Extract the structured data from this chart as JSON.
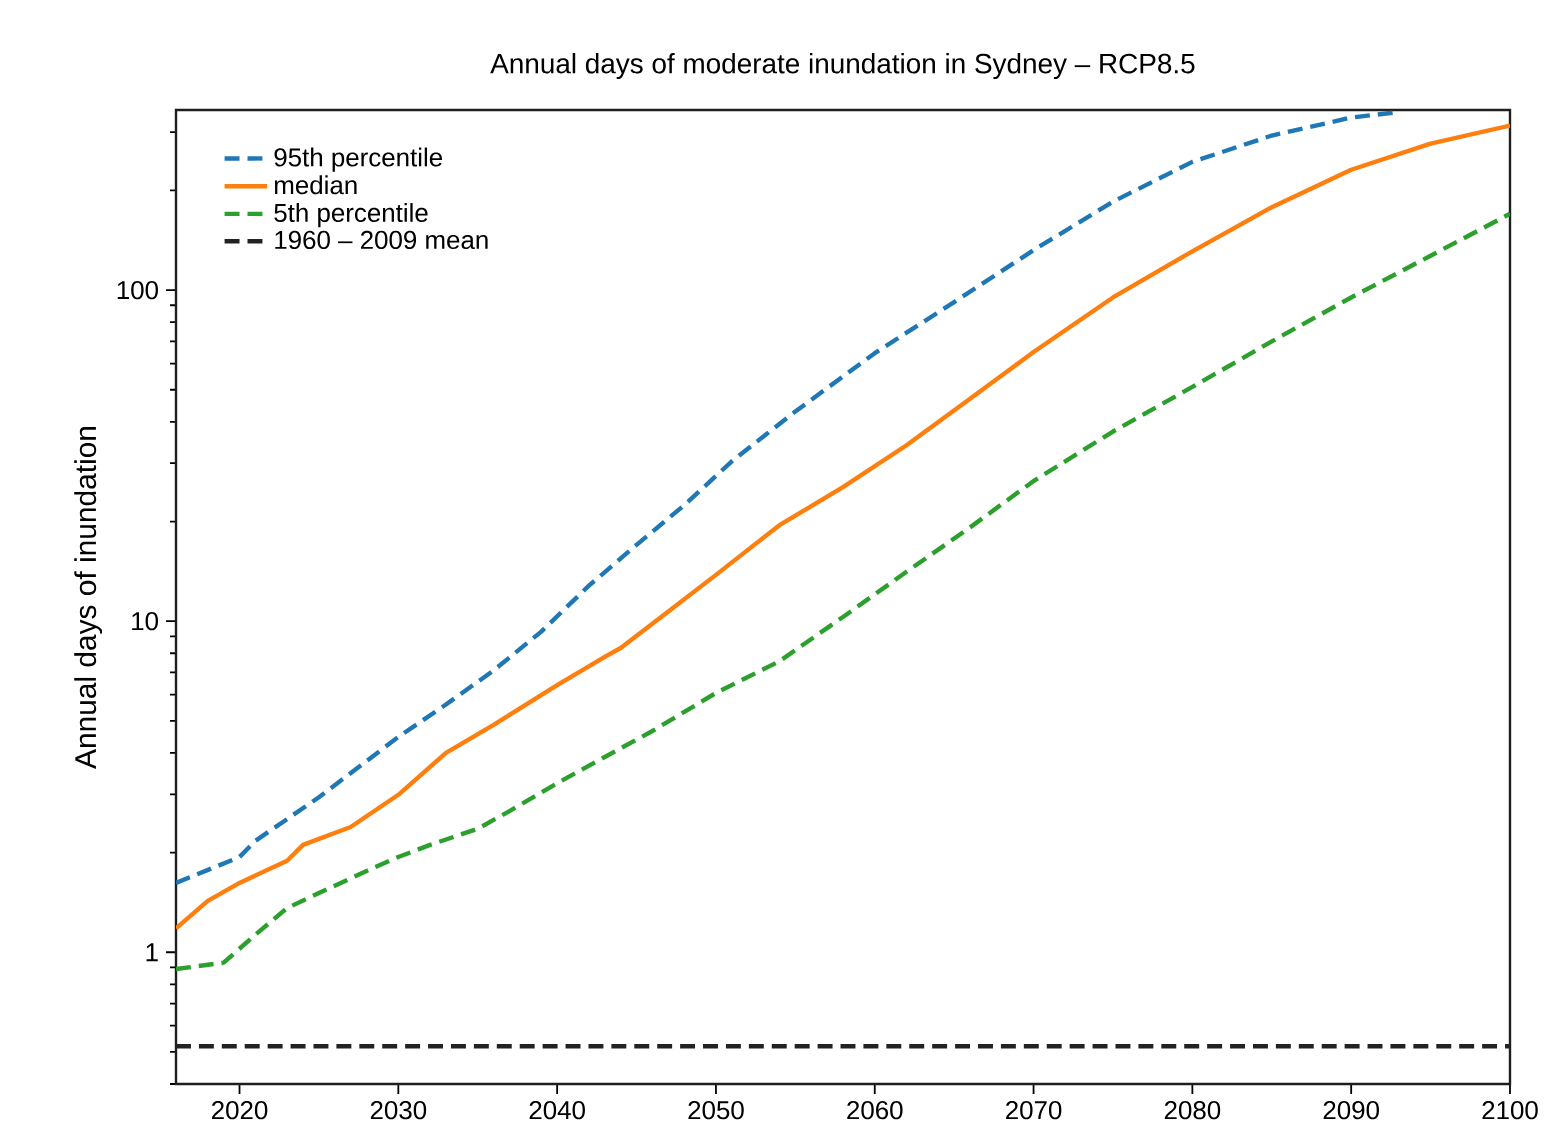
{
  "chart_data": {
    "type": "line",
    "title": "Annual days of moderate inundation in Sydney – RCP8.5",
    "ylabel": "Annual days of inundation",
    "log": "y",
    "legend": "top left",
    "xlim": [
      2016,
      2100
    ],
    "xticks": [
      2020,
      2030,
      2040,
      2050,
      2060,
      2070,
      2080,
      2090,
      2100
    ],
    "ylim": [
      0.4,
      350
    ],
    "yticks": [
      {
        "value": 0.4,
        "label": null
      },
      {
        "value": 0.5,
        "label": null
      },
      {
        "value": 0.6,
        "label": null
      },
      {
        "value": 0.7,
        "label": null
      },
      {
        "value": 0.8,
        "label": null
      },
      {
        "value": 0.9,
        "label": null
      },
      1,
      {
        "value": 2,
        "label": null
      },
      {
        "value": 3,
        "label": null
      },
      {
        "value": 4,
        "label": null
      },
      {
        "value": 5,
        "label": null
      },
      {
        "value": 6,
        "label": null
      },
      {
        "value": 7,
        "label": null
      },
      {
        "value": 8,
        "label": null
      },
      {
        "value": 9,
        "label": null
      },
      10,
      {
        "value": 20,
        "label": null
      },
      {
        "value": 30,
        "label": null
      },
      {
        "value": 40,
        "label": null
      },
      {
        "value": 50,
        "label": null
      },
      {
        "value": 60,
        "label": null
      },
      {
        "value": 70,
        "label": null
      },
      {
        "value": 80,
        "label": null
      },
      {
        "value": 90,
        "label": null
      },
      100,
      {
        "value": 200,
        "label": null
      },
      {
        "value": 300,
        "label": null
      }
    ],
    "series": [
      {
        "name": "95th percentile",
        "color": "#1f77b4",
        "line_style": "dashed",
        "x": [
          2016,
          2020,
          2021,
          2025,
          2028,
          2030,
          2033,
          2036,
          2039,
          2042,
          2045,
          2048,
          2051,
          2055,
          2060,
          2065,
          2070,
          2075,
          2080,
          2085,
          2090,
          2093
        ],
        "values": [
          1.62,
          1.94,
          2.17,
          2.94,
          3.78,
          4.47,
          5.6,
          7.1,
          9.3,
          12.8,
          17,
          22.4,
          30.4,
          43,
          64.5,
          92,
          132,
          185,
          244,
          293,
          332,
          345
        ]
      },
      {
        "name": "median",
        "color": "#ff7f0e",
        "line_style": "solid",
        "x": [
          2016,
          2018,
          2020,
          2023,
          2024,
          2027,
          2030,
          2033,
          2036,
          2040,
          2043,
          2044,
          2047,
          2050,
          2054,
          2058,
          2062,
          2066,
          2070,
          2075,
          2080,
          2085,
          2090,
          2095,
          2100
        ],
        "values": [
          1.18,
          1.43,
          1.62,
          1.89,
          2.11,
          2.39,
          2.99,
          4.0,
          4.86,
          6.41,
          7.8,
          8.3,
          10.7,
          13.8,
          19.5,
          25.4,
          34,
          47,
          65,
          95,
          131,
          178,
          231,
          277,
          314
        ]
      },
      {
        "name": "5th percentile",
        "color": "#2ca02c",
        "line_style": "dashed",
        "x": [
          2016,
          2019,
          2021,
          2023,
          2025,
          2028,
          2030,
          2032,
          2035,
          2037,
          2040,
          2043,
          2046,
          2050,
          2054,
          2058,
          2062,
          2066,
          2070,
          2075,
          2080,
          2085,
          2090,
          2095,
          2100
        ],
        "values": [
          0.89,
          0.93,
          1.13,
          1.36,
          1.51,
          1.76,
          1.94,
          2.11,
          2.36,
          2.67,
          3.24,
          3.89,
          4.66,
          6.07,
          7.57,
          10.3,
          14.1,
          19.2,
          26.5,
          37.4,
          51,
          70,
          95,
          127,
          170
        ]
      }
    ],
    "ref_lines": [
      {
        "axis": "y",
        "value": 0.52,
        "label": "1960 – 2009 mean",
        "color": "#222222",
        "line_style": "dashed"
      }
    ]
  }
}
